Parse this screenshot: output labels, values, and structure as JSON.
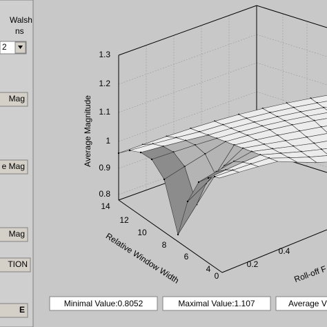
{
  "panel": {
    "labels": [
      "Walsh",
      "ns"
    ],
    "dropdown": "2",
    "buttons": [
      "Mag",
      "e Mag",
      "Mag",
      "TION",
      "E"
    ]
  },
  "plot": {
    "zticks": [
      "1.3",
      "1.2",
      "1.1",
      "1",
      "0.9",
      "0.8"
    ],
    "z_label": "Average Magnitude",
    "yticks": [
      "14",
      "12",
      "10",
      "8",
      "6",
      "4"
    ],
    "y_label": "Relative Window Width",
    "xticks": [
      "0",
      "0.2",
      "0.4"
    ],
    "x_label": "Roll-off F"
  },
  "stats": [
    "Minimal Value:0.8052",
    "Maximal Value:1.107",
    "Average V"
  ]
}
